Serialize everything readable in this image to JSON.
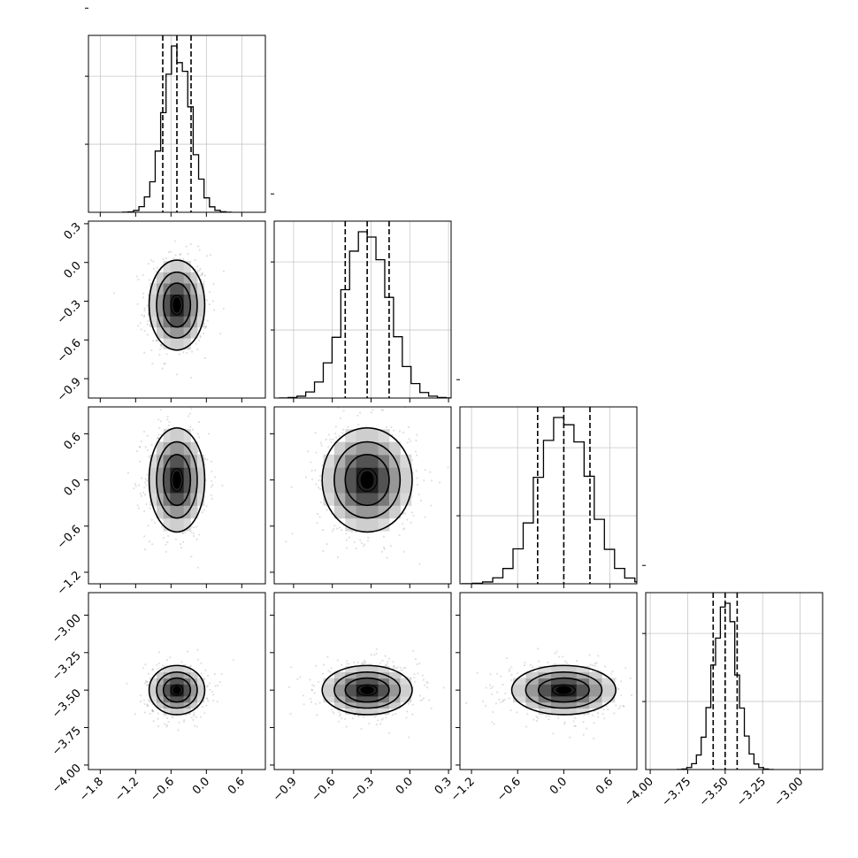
{
  "figure": {
    "type": "corner-plot",
    "n_parameters": 4
  },
  "chart_data": {
    "type": "corner",
    "parameters": [
      {
        "index": 0,
        "range": [
          -2.0,
          1.0
        ],
        "ticks": [
          -1.8,
          -1.2,
          -0.6,
          0.0,
          0.6
        ],
        "tick_labels": [
          "−1.8",
          "−1.2",
          "−0.6",
          "0.0",
          "0.6"
        ],
        "mean": -0.5,
        "sd": 0.23,
        "quantiles": [
          -0.74,
          -0.5,
          -0.26
        ]
      },
      {
        "index": 1,
        "range": [
          -1.05,
          0.32
        ],
        "ticks": [
          -0.9,
          -0.6,
          -0.3,
          0.0,
          0.3
        ],
        "tick_labels": [
          "−0.9",
          "−0.6",
          "−0.3",
          "0.0",
          "0.3"
        ],
        "mean": -0.33,
        "sd": 0.17,
        "quantiles": [
          -0.5,
          -0.33,
          -0.16
        ]
      },
      {
        "index": 2,
        "range": [
          -1.35,
          0.95
        ],
        "ticks": [
          -1.2,
          -0.6,
          0.0,
          0.6
        ],
        "tick_labels": [
          "−1.2",
          "−0.6",
          "0.0",
          "0.6"
        ],
        "mean": 0.0,
        "sd": 0.33,
        "quantiles": [
          -0.34,
          0.0,
          0.34
        ]
      },
      {
        "index": 3,
        "range": [
          -4.03,
          -2.85
        ],
        "ticks": [
          -4.0,
          -3.75,
          -3.5,
          -3.25,
          -3.0
        ],
        "tick_labels": [
          "−4.00",
          "−3.75",
          "−3.50",
          "−3.25",
          "−3.00"
        ],
        "mean": -3.5,
        "sd": 0.08,
        "quantiles": [
          -3.58,
          -3.5,
          -3.42
        ]
      }
    ],
    "histogram": {
      "bins": 20,
      "style": "step",
      "quantile_lines": "dashed",
      "y_ticks": 3
    },
    "pair_plots": {
      "style": "2d-histogram with contours and scatter",
      "contour_levels": 4
    },
    "grid": true
  }
}
